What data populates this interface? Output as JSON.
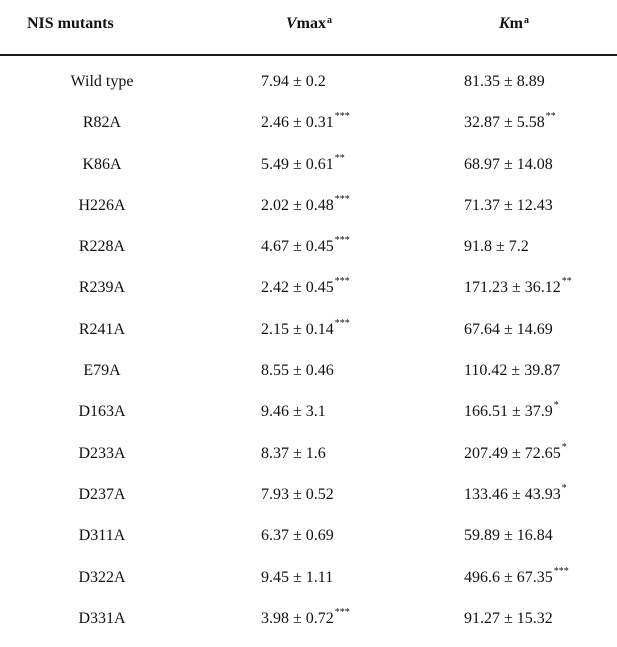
{
  "header": {
    "mutants_label": "NIS mutants",
    "vmax_var": "V",
    "vmax_rest": "max",
    "vmax_sup": "a",
    "km_var": "K",
    "km_rest": "m",
    "km_sup": "a"
  },
  "rows": [
    {
      "mutant": "Wild type",
      "vmax": "7.94 ± 0.2",
      "vmax_sig": "",
      "km": "81.35 ± 8.89",
      "km_sig": ""
    },
    {
      "mutant": "R82A",
      "vmax": "2.46 ± 0.31",
      "vmax_sig": "***",
      "km": "32.87 ± 5.58",
      "km_sig": "**"
    },
    {
      "mutant": "K86A",
      "vmax": "5.49 ± 0.61",
      "vmax_sig": "**",
      "km": "68.97 ± 14.08",
      "km_sig": ""
    },
    {
      "mutant": "H226A",
      "vmax": "2.02 ± 0.48",
      "vmax_sig": "***",
      "km": "71.37 ± 12.43",
      "km_sig": ""
    },
    {
      "mutant": "R228A",
      "vmax": "4.67 ± 0.45",
      "vmax_sig": "***",
      "km": "91.8 ± 7.2",
      "km_sig": ""
    },
    {
      "mutant": "R239A",
      "vmax": "2.42 ± 0.45",
      "vmax_sig": "***",
      "km": "171.23 ± 36.12",
      "km_sig": "**"
    },
    {
      "mutant": "R241A",
      "vmax": "2.15 ± 0.14",
      "vmax_sig": "***",
      "km": "67.64 ± 14.69",
      "km_sig": ""
    },
    {
      "mutant": "E79A",
      "vmax": "8.55 ± 0.46",
      "vmax_sig": "",
      "km": "110.42 ± 39.87",
      "km_sig": ""
    },
    {
      "mutant": "D163A",
      "vmax": "9.46 ± 3.1",
      "vmax_sig": "",
      "km": "166.51 ± 37.9",
      "km_sig": "*"
    },
    {
      "mutant": "D233A",
      "vmax": "8.37 ± 1.6",
      "vmax_sig": "",
      "km": "207.49 ± 72.65",
      "km_sig": "*"
    },
    {
      "mutant": "D237A",
      "vmax": "7.93 ± 0.52",
      "vmax_sig": "",
      "km": "133.46 ± 43.93",
      "km_sig": "*"
    },
    {
      "mutant": "D311A",
      "vmax": "6.37 ± 0.69",
      "vmax_sig": "",
      "km": "59.89 ± 16.84",
      "km_sig": ""
    },
    {
      "mutant": "D322A",
      "vmax": "9.45 ± 1.11",
      "vmax_sig": "",
      "km": "496.6 ± 67.35",
      "km_sig": "***"
    },
    {
      "mutant": "D331A",
      "vmax": "3.98 ± 0.72",
      "vmax_sig": "***",
      "km": "91.27 ± 15.32",
      "km_sig": ""
    }
  ]
}
